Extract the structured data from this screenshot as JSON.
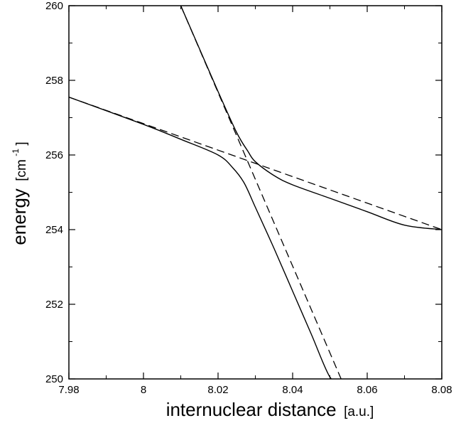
{
  "chart_data": {
    "type": "line",
    "xlabel": "internuclear distance",
    "xlabel_unit": "[a.u.]",
    "ylabel": "energy",
    "ylabel_unit_prefix": "[cm",
    "ylabel_unit_exp": "-1",
    "ylabel_unit_suffix": "]",
    "xlim": [
      7.98,
      8.08
    ],
    "ylim": [
      250,
      260
    ],
    "x_ticks": [
      7.98,
      8.0,
      8.02,
      8.04,
      8.06,
      8.08
    ],
    "x_tick_labels": [
      "7.98",
      "8",
      "8.02",
      "8.04",
      "8.06",
      "8.08"
    ],
    "y_ticks": [
      250,
      252,
      254,
      256,
      258,
      260
    ],
    "y_tick_labels": [
      "250",
      "252",
      "254",
      "256",
      "258",
      "260"
    ],
    "grid": false,
    "diabatic_lines": [
      {
        "style": "dashed",
        "x": [
          7.98,
          8.08
        ],
        "y": [
          257.55,
          254.0
        ]
      },
      {
        "style": "dashed",
        "x": [
          8.01,
          8.053
        ],
        "y": [
          260.0,
          250.0
        ]
      }
    ],
    "adiabatic_curves": [
      {
        "style": "solid",
        "x": [
          7.98,
          8.0,
          8.01,
          8.02,
          8.024,
          8.027,
          8.03,
          8.035,
          8.04,
          8.045,
          8.05,
          8.053
        ],
        "y": [
          257.55,
          256.82,
          256.42,
          256.0,
          255.65,
          255.25,
          254.6,
          253.5,
          252.35,
          251.2,
          250.05,
          249.95
        ]
      },
      {
        "style": "solid",
        "x": [
          8.01,
          8.015,
          8.02,
          8.025,
          8.028,
          8.03,
          8.035,
          8.04,
          8.05,
          8.06,
          8.07,
          8.08
        ],
        "y": [
          260.0,
          258.85,
          257.7,
          256.6,
          256.1,
          255.82,
          255.45,
          255.2,
          254.84,
          254.48,
          254.12,
          254.0
        ]
      }
    ]
  }
}
